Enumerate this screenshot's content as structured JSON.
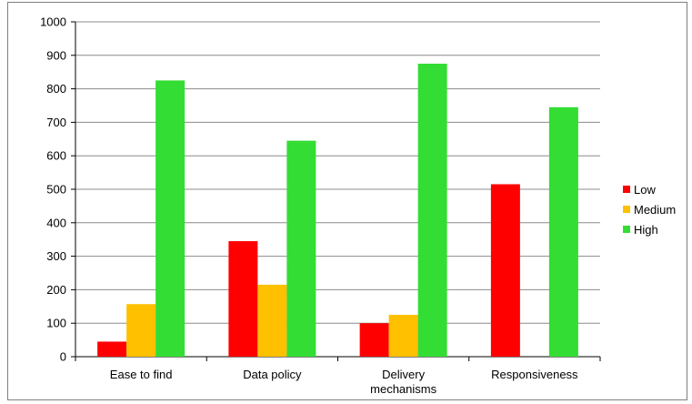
{
  "chart_data": {
    "type": "bar",
    "title": "",
    "xlabel": "",
    "ylabel": "",
    "ylim": [
      0,
      1000
    ],
    "yticks": [
      0,
      100,
      200,
      300,
      400,
      500,
      600,
      700,
      800,
      900,
      1000
    ],
    "grid": "horizontal",
    "legend_position": "right",
    "categories": [
      "Ease to find",
      "Data policy",
      "Delivery mechanisms",
      "Responsiveness"
    ],
    "series": [
      {
        "name": "Low",
        "color": "#ff0000",
        "values": [
          45,
          345,
          100,
          515
        ]
      },
      {
        "name": "Medium",
        "color": "#ffc000",
        "values": [
          157,
          215,
          125,
          0
        ]
      },
      {
        "name": "High",
        "color": "#33dd33",
        "values": [
          825,
          645,
          875,
          745
        ]
      }
    ]
  }
}
